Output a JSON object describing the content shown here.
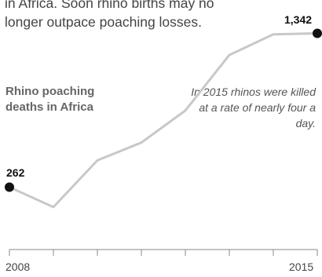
{
  "intro_text": "in Africa. Soon rhino births may no longer outpace poaching losses.",
  "chart_data": {
    "type": "line",
    "title": "",
    "series_label": "Rhino poaching deaths in Africa",
    "annotation": "In 2015 rhinos were killed at a rate of nearly four a day.",
    "x": [
      2008,
      2009,
      2010,
      2011,
      2012,
      2013,
      2014,
      2015
    ],
    "series": [
      {
        "values": [
          262,
          122,
          450,
          575,
          800,
          1190,
          1335,
          1342
        ]
      }
    ],
    "ylim": [
      0,
      1400
    ],
    "start_label": "262",
    "end_label": "1,342",
    "x_tick_labels": [
      "2008",
      "2015"
    ],
    "line_color": "#c8c8c8",
    "marker_color": "#111111",
    "axis_color": "#888888"
  }
}
